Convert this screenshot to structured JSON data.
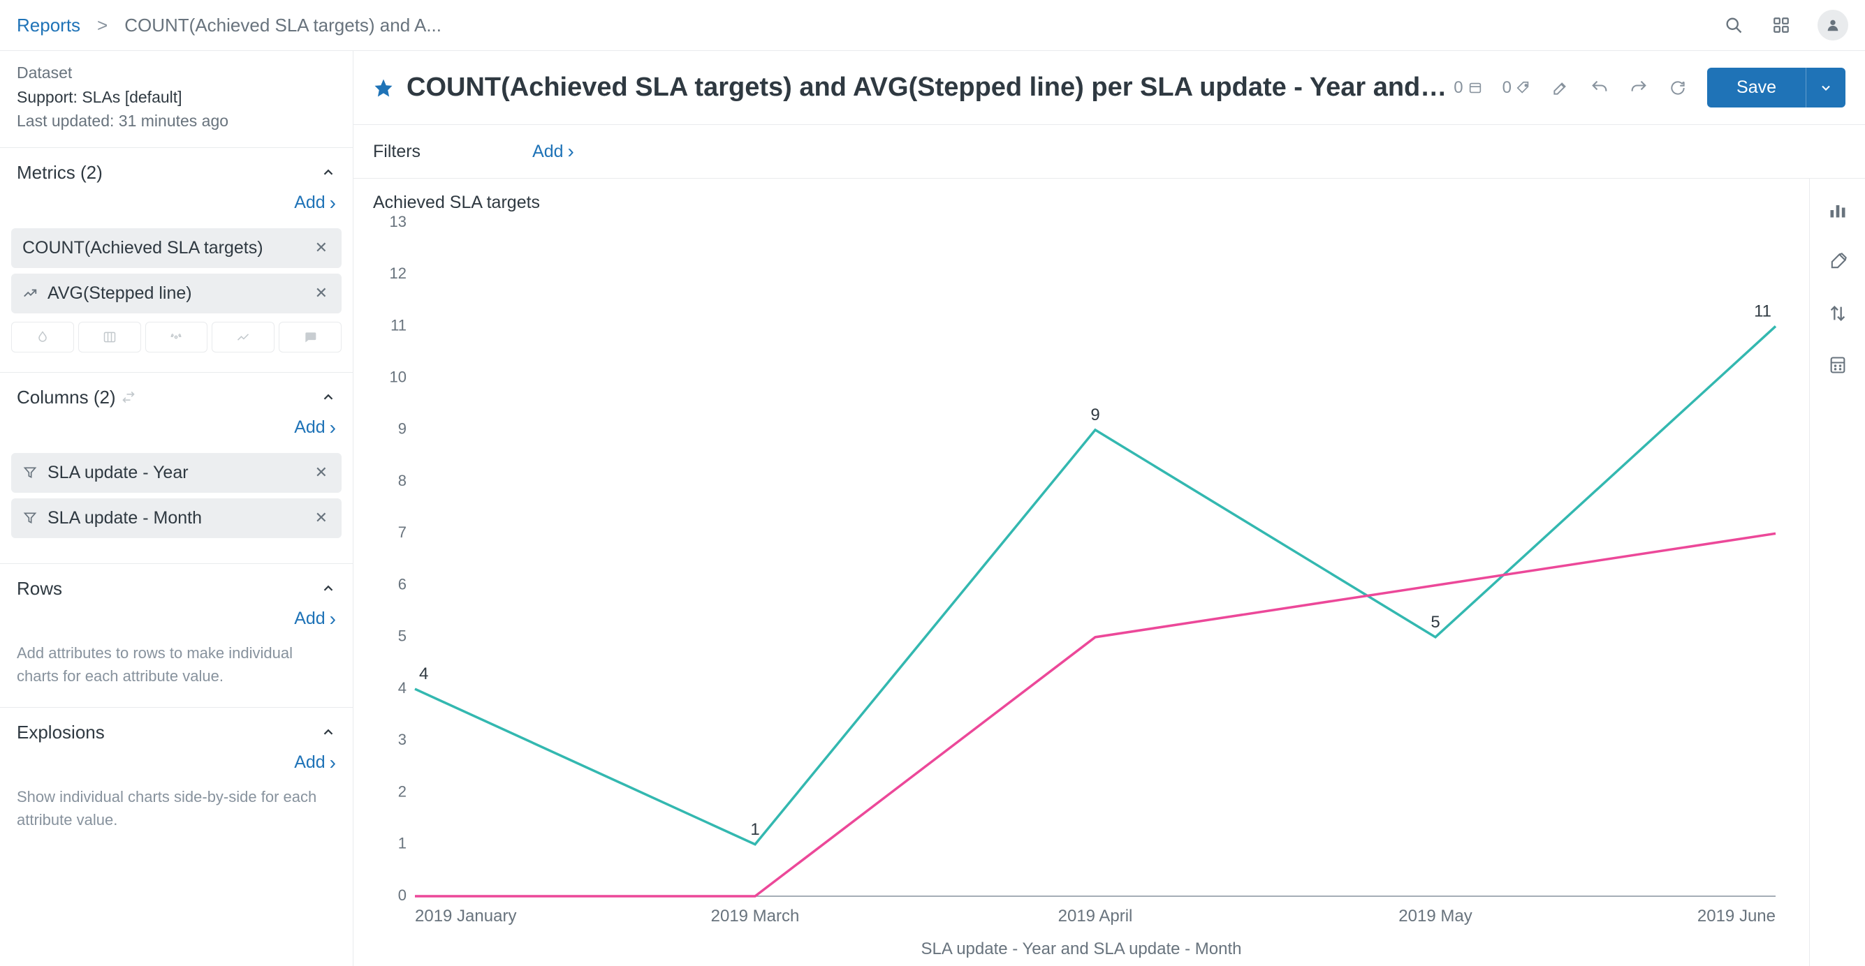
{
  "breadcrumb": {
    "root": "Reports",
    "current": "COUNT(Achieved SLA targets) and A..."
  },
  "dataset": {
    "label": "Dataset",
    "name": "Support: SLAs [default]",
    "updated": "Last updated: 31 minutes ago"
  },
  "sidebar": {
    "metrics": {
      "title": "Metrics (2)",
      "add": "Add",
      "items": [
        {
          "label": "COUNT(Achieved SLA targets)",
          "icon": null
        },
        {
          "label": "AVG(Stepped line)",
          "icon": "trend"
        }
      ]
    },
    "columns": {
      "title": "Columns (2)",
      "add": "Add",
      "items": [
        {
          "label": "SLA update - Year",
          "icon": "filter"
        },
        {
          "label": "SLA update - Month",
          "icon": "filter"
        }
      ]
    },
    "rows": {
      "title": "Rows",
      "add": "Add",
      "hint": "Add attributes to rows to make individual charts for each attribute value."
    },
    "explosions": {
      "title": "Explosions",
      "add": "Add",
      "hint": "Show individual charts side-by-side for each attribute value."
    }
  },
  "title": "COUNT(Achieved SLA targets) and AVG(Stepped line) per SLA update - Year and SLA update - Month",
  "badges": {
    "bookmarks": "0",
    "tags": "0"
  },
  "save_label": "Save",
  "filters": {
    "label": "Filters",
    "add": "Add"
  },
  "chart": {
    "type": "line",
    "y_title": "Achieved SLA targets",
    "x_title": "SLA update - Year and SLA update - Month",
    "x_labels": [
      "2019 January",
      "2019 March",
      "2019 April",
      "2019 May",
      "2019 June"
    ],
    "y_min": 0,
    "y_max": 13,
    "y_tick_step": 1,
    "series": [
      {
        "name": "COUNT(Achieved SLA targets)",
        "color": "#33b8b0",
        "values": [
          4,
          1,
          9,
          5,
          11
        ],
        "show_labels": true
      },
      {
        "name": "AVG(Stepped line)",
        "color": "#ec4899",
        "values": [
          0,
          0,
          5,
          6,
          7
        ],
        "show_labels": false
      }
    ],
    "background": "#ffffff",
    "label_fontsize": 22
  }
}
